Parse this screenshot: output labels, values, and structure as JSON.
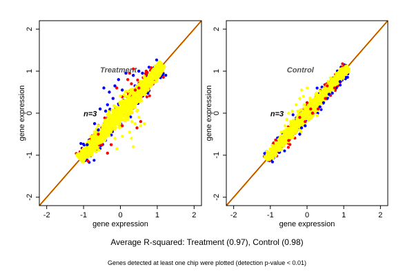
{
  "footer": {
    "summary": "Average R-squared: Treatment (0.97), Control (0.98)",
    "note": "Genes detected at least one chip were plotted (detection p-value < 0.01)"
  },
  "colors": {
    "background": "#ffffff",
    "axis": "#000000",
    "panel_label": "#555555",
    "diagonal_dark": "#8b3a00",
    "diagonal_light": "#ff8c00",
    "series": [
      "#0000ff",
      "#ff0000",
      "#ffff00"
    ]
  },
  "chart_data": [
    {
      "type": "scatter",
      "title": "",
      "panel_label": "Treatment",
      "annotation": "n=3",
      "xlabel": "gene expression",
      "ylabel": "gene expression",
      "xlim": [
        -2.2,
        2.2
      ],
      "ylim": [
        -2.2,
        2.2
      ],
      "xticks": [
        -2,
        -1,
        0,
        1,
        2
      ],
      "yticks": [
        -2,
        -1,
        0,
        1,
        2
      ],
      "grid": false,
      "reference_line": "y = x",
      "series_colors": [
        "blue",
        "red",
        "yellow"
      ],
      "core_range": [
        -1.1,
        1.15
      ],
      "core_spread": 0.11,
      "outliers": {
        "blue": [
          [
            -0.45,
            0.6
          ],
          [
            -0.3,
            0.5
          ],
          [
            -0.55,
            0.1
          ],
          [
            -0.35,
            0.2
          ],
          [
            -0.15,
            0.65
          ],
          [
            0.15,
            0.95
          ],
          [
            0.35,
            0.9
          ],
          [
            -0.7,
            -0.25
          ],
          [
            -0.05,
            0.8
          ],
          [
            0.5,
            1.0
          ],
          [
            -0.2,
            0.35
          ],
          [
            -0.6,
            -0.4
          ],
          [
            0.05,
            0.55
          ],
          [
            -0.4,
            0.05
          ],
          [
            0.6,
            0.95
          ],
          [
            -0.9,
            -0.75
          ]
        ],
        "red": [
          [
            0.2,
            0.8
          ],
          [
            0.3,
            0.7
          ],
          [
            0.5,
            0.6
          ],
          [
            0.4,
            0.55
          ],
          [
            -0.6,
            -0.5
          ],
          [
            -0.25,
            -0.75
          ],
          [
            0.45,
            -0.35
          ],
          [
            0.05,
            -0.3
          ],
          [
            0.7,
            1.0
          ],
          [
            0.35,
            1.05
          ],
          [
            -0.1,
            0.6
          ],
          [
            0.55,
            -0.2
          ],
          [
            0.25,
            0.95
          ],
          [
            -0.35,
            -0.95
          ]
        ],
        "yellow": [
          [
            0.4,
            -0.25
          ],
          [
            0.55,
            -0.3
          ],
          [
            0.25,
            -0.45
          ],
          [
            0.5,
            -0.1
          ],
          [
            0.45,
            0.05
          ],
          [
            0.3,
            -0.6
          ],
          [
            -0.1,
            -0.85
          ],
          [
            -0.3,
            -0.2
          ],
          [
            -0.45,
            -0.55
          ],
          [
            0.6,
            0.45
          ],
          [
            0.2,
            -0.15
          ],
          [
            -0.15,
            -0.6
          ],
          [
            0.05,
            -0.55
          ],
          [
            0.35,
            -0.8
          ],
          [
            -0.6,
            -0.3
          ],
          [
            0.65,
            -0.25
          ]
        ]
      }
    },
    {
      "type": "scatter",
      "title": "",
      "panel_label": "Control",
      "annotation": "n=3",
      "xlabel": "gene expression",
      "ylabel": "gene expression",
      "xlim": [
        -2.2,
        2.2
      ],
      "ylim": [
        -2.2,
        2.2
      ],
      "xticks": [
        -2,
        -1,
        0,
        1,
        2
      ],
      "yticks": [
        -2,
        -1,
        0,
        1,
        2
      ],
      "grid": false,
      "reference_line": "y = x",
      "series_colors": [
        "blue",
        "red",
        "yellow"
      ],
      "core_range": [
        -1.1,
        1.1
      ],
      "core_spread": 0.08,
      "outliers": {
        "blue": [
          [
            0.45,
            0.25
          ],
          [
            0.6,
            0.45
          ],
          [
            0.8,
            0.6
          ],
          [
            -0.15,
            -0.35
          ],
          [
            0.35,
            0.15
          ],
          [
            -0.2,
            -0.5
          ],
          [
            0.9,
            0.75
          ],
          [
            0.15,
            0.0
          ],
          [
            0.55,
            0.35
          ],
          [
            -0.05,
            -0.3
          ]
        ],
        "red": [
          [
            0.15,
            0.0
          ],
          [
            0.1,
            0.1
          ],
          [
            -0.05,
            -0.2
          ],
          [
            0.5,
            0.35
          ],
          [
            0.75,
            0.6
          ],
          [
            -0.2,
            -0.1
          ],
          [
            0.0,
            0.25
          ],
          [
            0.55,
            0.65
          ],
          [
            -0.5,
            -0.65
          ],
          [
            0.3,
            0.1
          ]
        ],
        "yellow": [
          [
            -0.4,
            0.05
          ],
          [
            -0.2,
            0.35
          ],
          [
            -0.6,
            -0.3
          ],
          [
            -0.5,
            0.0
          ],
          [
            -0.15,
            0.55
          ],
          [
            0.0,
            0.6
          ],
          [
            -0.3,
            0.2
          ],
          [
            -0.7,
            -0.45
          ],
          [
            -0.55,
            -0.15
          ],
          [
            -0.1,
            0.4
          ],
          [
            -0.45,
            -0.2
          ]
        ]
      }
    }
  ]
}
